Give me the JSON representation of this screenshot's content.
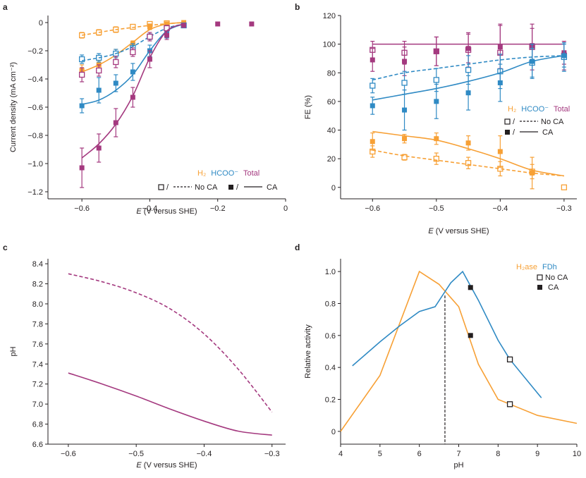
{
  "colors": {
    "h2": "#f7a035",
    "formate": "#2f8ac4",
    "total": "#a4397f",
    "black": "#231f20"
  },
  "chart_data": [
    {
      "panel": "a",
      "type": "line",
      "xlabel_italic": "E",
      "xlabel_rest": " (V versus SHE)",
      "ylabel": "Current density (mA cm⁻²)",
      "xlim": [
        -0.7,
        0
      ],
      "ylim": [
        -1.25,
        0.05
      ],
      "xticks": [
        -0.6,
        -0.4,
        -0.2,
        0
      ],
      "xtick_labels": [
        "−0.6",
        "−0.4",
        "−0.2",
        "0"
      ],
      "yticks": [
        0,
        -0.2,
        -0.4,
        -0.6,
        -0.8,
        -1.0,
        -1.2
      ],
      "ytick_labels": [
        "0",
        "−0.2",
        "−0.4",
        "−0.6",
        "−0.8",
        "−1.0",
        "−1.2"
      ],
      "legend": {
        "h2": "H₂",
        "formate": "HCOO⁻",
        "total": "Total",
        "noca": "No CA",
        "ca": "CA",
        "sep": "/"
      },
      "series": [
        {
          "name": "H2 No CA points",
          "color": "h2",
          "marker": "open",
          "x": [
            -0.6,
            -0.55,
            -0.5,
            -0.45,
            -0.4,
            -0.35
          ],
          "y": [
            -0.09,
            -0.07,
            -0.05,
            -0.03,
            -0.01,
            -0.005
          ],
          "err": [
            0.02,
            0.02,
            0.02,
            0.01,
            0.01,
            0.01
          ]
        },
        {
          "name": "H2 No CA fit",
          "color": "h2",
          "line": "dashed",
          "x": [
            -0.6,
            -0.55,
            -0.5,
            -0.45,
            -0.4,
            -0.35,
            -0.3
          ],
          "y": [
            -0.09,
            -0.07,
            -0.05,
            -0.035,
            -0.02,
            -0.008,
            0.0
          ]
        },
        {
          "name": "H2 CA points",
          "color": "h2",
          "marker": "filled",
          "x": [
            -0.6,
            -0.55,
            -0.5,
            -0.45,
            -0.4,
            -0.35,
            -0.3
          ],
          "y": [
            -0.34,
            -0.3,
            -0.22,
            -0.15,
            -0.03,
            -0.01,
            0.0
          ],
          "err": [
            0.04,
            0.03,
            0.03,
            0.02,
            0.02,
            0.01,
            0.01
          ]
        },
        {
          "name": "H2 CA fit",
          "color": "h2",
          "line": "solid",
          "x": [
            -0.6,
            -0.55,
            -0.5,
            -0.45,
            -0.4,
            -0.35,
            -0.3
          ],
          "y": [
            -0.35,
            -0.3,
            -0.23,
            -0.14,
            -0.05,
            -0.01,
            0.0
          ]
        },
        {
          "name": "Formate No CA points",
          "color": "formate",
          "marker": "open",
          "x": [
            -0.6,
            -0.55,
            -0.5,
            -0.45,
            -0.4,
            -0.35,
            -0.3
          ],
          "y": [
            -0.26,
            -0.25,
            -0.22,
            -0.18,
            -0.1,
            -0.04,
            -0.02
          ],
          "err": [
            0.03,
            0.03,
            0.03,
            0.03,
            0.02,
            0.02,
            0.01
          ]
        },
        {
          "name": "Formate No CA fit",
          "color": "formate",
          "line": "dashed",
          "x": [
            -0.6,
            -0.55,
            -0.5,
            -0.45,
            -0.4,
            -0.35,
            -0.3
          ],
          "y": [
            -0.27,
            -0.25,
            -0.22,
            -0.17,
            -0.1,
            -0.04,
            -0.01
          ]
        },
        {
          "name": "Formate CA points",
          "color": "formate",
          "marker": "filled",
          "x": [
            -0.6,
            -0.55,
            -0.5,
            -0.45,
            -0.4,
            -0.35,
            -0.3
          ],
          "y": [
            -0.59,
            -0.48,
            -0.43,
            -0.35,
            -0.2,
            -0.08,
            -0.02
          ],
          "err": [
            0.05,
            0.09,
            0.06,
            0.06,
            0.04,
            0.03,
            0.01
          ]
        },
        {
          "name": "Formate CA fit",
          "color": "formate",
          "line": "solid",
          "x": [
            -0.6,
            -0.55,
            -0.5,
            -0.45,
            -0.4,
            -0.35,
            -0.3
          ],
          "y": [
            -0.58,
            -0.55,
            -0.48,
            -0.37,
            -0.2,
            -0.06,
            -0.01
          ]
        },
        {
          "name": "Total No CA points",
          "color": "total",
          "marker": "open",
          "x": [
            -0.6,
            -0.55,
            -0.5,
            -0.45,
            -0.4,
            -0.35
          ],
          "y": [
            -0.37,
            -0.34,
            -0.28,
            -0.21,
            -0.1,
            -0.04
          ],
          "err": [
            0.05,
            0.04,
            0.04,
            0.03,
            0.03,
            0.02
          ]
        },
        {
          "name": "Total CA points",
          "color": "total",
          "marker": "filled",
          "x": [
            -0.6,
            -0.55,
            -0.5,
            -0.45,
            -0.4,
            -0.35,
            -0.3,
            -0.2,
            -0.1
          ],
          "y": [
            -1.03,
            -0.89,
            -0.71,
            -0.53,
            -0.26,
            -0.09,
            -0.02,
            -0.01,
            -0.01
          ],
          "err": [
            0.14,
            0.1,
            0.1,
            0.07,
            0.06,
            0.03,
            0.01,
            0.01,
            0.01
          ]
        },
        {
          "name": "Total CA fit",
          "color": "total",
          "line": "solid",
          "x": [
            -0.6,
            -0.55,
            -0.5,
            -0.45,
            -0.4,
            -0.35,
            -0.3
          ],
          "y": [
            -0.96,
            -0.86,
            -0.72,
            -0.52,
            -0.25,
            -0.06,
            -0.01
          ]
        }
      ]
    },
    {
      "panel": "b",
      "type": "line",
      "xlabel_italic": "E",
      "xlabel_rest": " (V versus SHE)",
      "ylabel": "FE (%)",
      "xlim": [
        -0.65,
        -0.28
      ],
      "ylim": [
        -8,
        120
      ],
      "xticks": [
        -0.6,
        -0.5,
        -0.4,
        -0.3
      ],
      "xtick_labels": [
        "−0.6",
        "−0.5",
        "−0.4",
        "−0.3"
      ],
      "yticks": [
        0,
        20,
        40,
        60,
        80,
        100,
        120
      ],
      "ytick_labels": [
        "0",
        "20",
        "40",
        "60",
        "80",
        "100",
        "120"
      ],
      "legend": {
        "h2": "H₂",
        "formate": "HCOO⁻",
        "total": "Total",
        "noca": "No CA",
        "ca": "CA",
        "sep": "/"
      },
      "series": [
        {
          "name": "Total No CA points",
          "color": "total",
          "marker": "open",
          "x": [
            -0.6,
            -0.55,
            -0.5,
            -0.45,
            -0.4,
            -0.35,
            -0.3
          ],
          "y": [
            96,
            94,
            95,
            96,
            94,
            98,
            92
          ],
          "err": [
            6,
            8,
            10,
            12,
            20,
            16,
            10
          ]
        },
        {
          "name": "Total CA points",
          "color": "total",
          "marker": "filled",
          "x": [
            -0.6,
            -0.55,
            -0.5,
            -0.45,
            -0.4,
            -0.35,
            -0.3
          ],
          "y": [
            89,
            88,
            95,
            97,
            98,
            99,
            94
          ],
          "err": [
            8,
            10,
            10,
            10,
            15,
            12,
            8
          ]
        },
        {
          "name": "Total fit",
          "color": "total",
          "line": "solid",
          "x": [
            -0.6,
            -0.3
          ],
          "y": [
            100,
            100
          ]
        },
        {
          "name": "Formate No CA points",
          "color": "formate",
          "marker": "open",
          "x": [
            -0.6,
            -0.55,
            -0.5,
            -0.45,
            -0.4,
            -0.35,
            -0.3
          ],
          "y": [
            71,
            73,
            75,
            82,
            81,
            87,
            91
          ],
          "err": [
            5,
            8,
            8,
            10,
            12,
            10,
            10
          ]
        },
        {
          "name": "Formate No CA fit",
          "color": "formate",
          "line": "dashed",
          "x": [
            -0.6,
            -0.55,
            -0.5,
            -0.45,
            -0.4,
            -0.35,
            -0.3
          ],
          "y": [
            75,
            80,
            83,
            86,
            89,
            91,
            92
          ]
        },
        {
          "name": "Formate CA points",
          "color": "formate",
          "marker": "filled",
          "x": [
            -0.6,
            -0.55,
            -0.5,
            -0.45,
            -0.4,
            -0.35,
            -0.3
          ],
          "y": [
            57,
            54,
            60,
            66,
            73,
            88,
            92
          ],
          "err": [
            6,
            14,
            12,
            12,
            13,
            12,
            8
          ]
        },
        {
          "name": "Formate CA fit",
          "color": "formate",
          "line": "solid",
          "x": [
            -0.6,
            -0.55,
            -0.5,
            -0.45,
            -0.4,
            -0.35,
            -0.3
          ],
          "y": [
            61,
            65,
            69,
            74,
            80,
            88,
            92
          ]
        },
        {
          "name": "H2 No CA points",
          "color": "h2",
          "marker": "open",
          "x": [
            -0.6,
            -0.55,
            -0.5,
            -0.45,
            -0.4,
            -0.35,
            -0.3
          ],
          "y": [
            25,
            21,
            20,
            17,
            13,
            11,
            0
          ],
          "err": [
            4,
            2,
            4,
            4,
            5,
            5,
            1
          ]
        },
        {
          "name": "H2 No CA fit",
          "color": "h2",
          "line": "dashed",
          "x": [
            -0.6,
            -0.55,
            -0.5,
            -0.45,
            -0.4,
            -0.35,
            -0.3
          ],
          "y": [
            26,
            22,
            19,
            16,
            13,
            10,
            8
          ]
        },
        {
          "name": "H2 CA points",
          "color": "h2",
          "marker": "filled",
          "x": [
            -0.6,
            -0.55,
            -0.5,
            -0.45,
            -0.4,
            -0.35
          ],
          "y": [
            32,
            34,
            34,
            31,
            25,
            10
          ],
          "err": [
            6,
            3,
            4,
            5,
            11,
            11
          ]
        },
        {
          "name": "H2 CA fit",
          "color": "h2",
          "line": "solid",
          "x": [
            -0.6,
            -0.55,
            -0.5,
            -0.45,
            -0.4,
            -0.35,
            -0.3
          ],
          "y": [
            39,
            36,
            33,
            27,
            20,
            12,
            8
          ]
        }
      ]
    },
    {
      "panel": "c",
      "type": "line",
      "xlabel_italic": "E",
      "xlabel_rest": " (V versus SHE)",
      "ylabel": "pH",
      "xlim": [
        -0.63,
        -0.28
      ],
      "ylim": [
        6.6,
        8.45
      ],
      "xticks": [
        -0.6,
        -0.5,
        -0.4,
        -0.3
      ],
      "xtick_labels": [
        "−0.6",
        "−0.5",
        "−0.4",
        "−0.3"
      ],
      "yticks": [
        6.6,
        6.8,
        7.0,
        7.2,
        7.4,
        7.6,
        7.8,
        8.0,
        8.2,
        8.4
      ],
      "ytick_labels": [
        "6.6",
        "6.8",
        "7.0",
        "7.2",
        "7.4",
        "7.6",
        "7.8",
        "8.0",
        "8.2",
        "8.4"
      ],
      "series": [
        {
          "name": "No CA",
          "color": "total",
          "line": "dashed",
          "x": [
            -0.6,
            -0.55,
            -0.5,
            -0.45,
            -0.4,
            -0.35,
            -0.3
          ],
          "y": [
            8.3,
            8.22,
            8.11,
            7.95,
            7.7,
            7.35,
            6.92
          ]
        },
        {
          "name": "CA",
          "color": "total",
          "line": "solid",
          "x": [
            -0.6,
            -0.55,
            -0.5,
            -0.45,
            -0.4,
            -0.35,
            -0.3
          ],
          "y": [
            7.31,
            7.2,
            7.08,
            6.95,
            6.83,
            6.73,
            6.69
          ]
        }
      ]
    },
    {
      "panel": "d",
      "type": "line",
      "xlabel": "pH",
      "ylabel": "Relative activity",
      "xlim": [
        4,
        10
      ],
      "ylim": [
        -0.08,
        1.08
      ],
      "xticks": [
        4,
        5,
        6,
        7,
        8,
        9,
        10
      ],
      "xtick_labels": [
        "4",
        "5",
        "6",
        "7",
        "8",
        "9",
        "10"
      ],
      "yticks": [
        0,
        0.2,
        0.4,
        0.6,
        0.8,
        1.0
      ],
      "ytick_labels": [
        "0",
        "0.2",
        "0.4",
        "0.6",
        "0.8",
        "1.0"
      ],
      "legend": {
        "h2ase": "H₂ase",
        "fdh": "FDh",
        "noca": "No CA",
        "ca": "CA"
      },
      "vline_x": 6.65,
      "series": [
        {
          "name": "H2ase",
          "color": "h2",
          "line": "solid",
          "x": [
            4,
            5,
            6,
            6.5,
            7,
            7.5,
            8,
            8.3,
            9,
            10
          ],
          "y": [
            0,
            0.35,
            1.0,
            0.92,
            0.78,
            0.42,
            0.2,
            0.17,
            0.1,
            0.05
          ]
        },
        {
          "name": "FDh",
          "color": "formate",
          "line": "solid",
          "x": [
            4.3,
            5,
            5.5,
            6,
            6.4,
            6.8,
            7.1,
            7.5,
            8,
            8.3,
            9.1
          ],
          "y": [
            0.41,
            0.56,
            0.66,
            0.75,
            0.78,
            0.93,
            1.0,
            0.82,
            0.57,
            0.45,
            0.21
          ]
        },
        {
          "name": "No CA points",
          "color": "black",
          "marker": "open",
          "x": [
            8.3,
            8.3
          ],
          "y": [
            0.45,
            0.17
          ]
        },
        {
          "name": "CA points",
          "color": "black",
          "marker": "filled",
          "x": [
            7.3,
            7.3
          ],
          "y": [
            0.9,
            0.6
          ]
        }
      ]
    }
  ]
}
